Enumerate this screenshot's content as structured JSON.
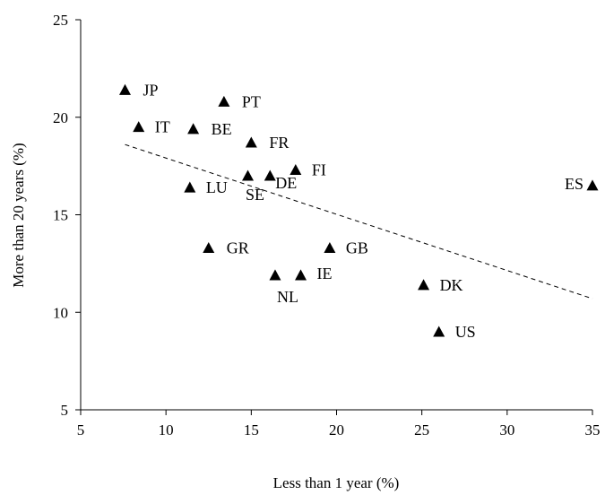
{
  "chart_data": {
    "type": "scatter",
    "xlabel": "Less than 1 year (%)",
    "ylabel": "More than 20 years (%)",
    "xlim": [
      5,
      35
    ],
    "ylim": [
      5,
      25
    ],
    "xticks": [
      "5",
      "10",
      "15",
      "20",
      "25",
      "30",
      "35"
    ],
    "yticks": [
      "5",
      "10",
      "15",
      "20",
      "25"
    ],
    "grid": false,
    "marker": "triangle",
    "marker_color": "#000000",
    "points": [
      {
        "label": "JP",
        "x": 7.6,
        "y": 21.4
      },
      {
        "label": "IT",
        "x": 8.4,
        "y": 19.5
      },
      {
        "label": "BE",
        "x": 11.6,
        "y": 19.4
      },
      {
        "label": "PT",
        "x": 13.4,
        "y": 20.8
      },
      {
        "label": "FR",
        "x": 15.0,
        "y": 18.7
      },
      {
        "label": "FI",
        "x": 17.6,
        "y": 17.3
      },
      {
        "label": "SE",
        "x": 14.8,
        "y": 17.0
      },
      {
        "label": "DE",
        "x": 16.1,
        "y": 17.0
      },
      {
        "label": "LU",
        "x": 11.4,
        "y": 16.4
      },
      {
        "label": "ES",
        "x": 35.0,
        "y": 16.5
      },
      {
        "label": "GR",
        "x": 12.5,
        "y": 13.3
      },
      {
        "label": "GB",
        "x": 19.6,
        "y": 13.3
      },
      {
        "label": "NL",
        "x": 16.4,
        "y": 11.9
      },
      {
        "label": "IE",
        "x": 17.9,
        "y": 11.9
      },
      {
        "label": "DK",
        "x": 25.1,
        "y": 11.4
      },
      {
        "label": "US",
        "x": 26.0,
        "y": 9.0
      }
    ],
    "trendline": {
      "style": "dashed",
      "x": [
        7.6,
        35.0
      ],
      "y": [
        18.6,
        10.7
      ]
    }
  }
}
